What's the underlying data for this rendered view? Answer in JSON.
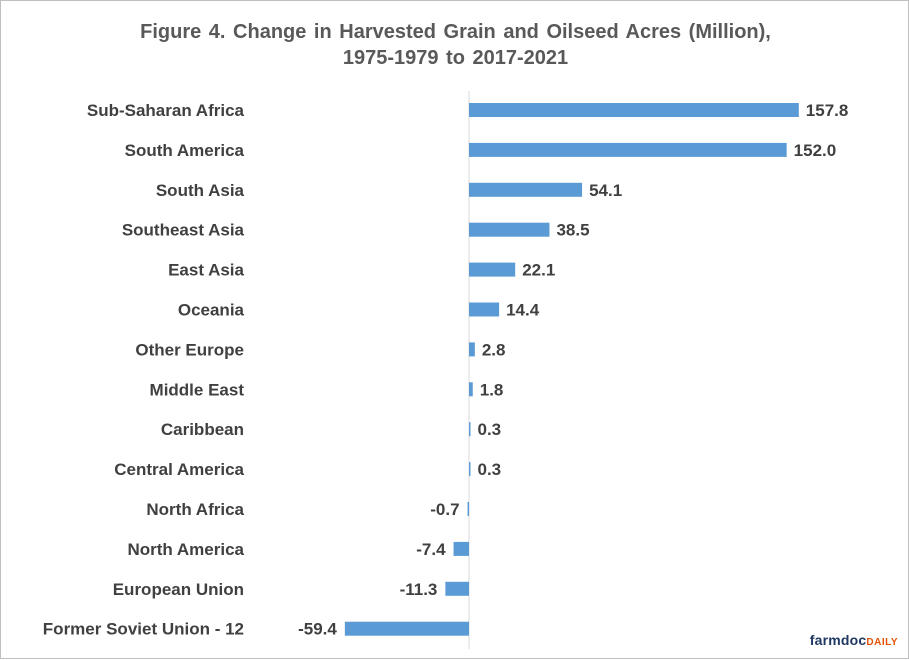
{
  "chart_data": {
    "type": "bar",
    "orientation": "horizontal",
    "title": "Figure  4. Change in Harvested Grain and Oilseed Acres (Million),",
    "subtitle": "1975-1979  to 2017-2021",
    "xlabel": "",
    "ylabel": "",
    "grid": false,
    "legend": "none",
    "bar_color": "#5b9bd5",
    "xlim": [
      -70,
      175
    ],
    "categories": [
      "Sub-Saharan Africa",
      "South America",
      "South Asia",
      "Southeast Asia",
      "East Asia",
      "Oceania",
      "Other Europe",
      "Middle East",
      "Caribbean",
      "Central America",
      "North Africa",
      "North America",
      "European Union",
      "Former Soviet Union - 12"
    ],
    "values": [
      157.8,
      152.0,
      54.1,
      38.5,
      22.1,
      14.4,
      2.8,
      1.8,
      0.3,
      0.3,
      -0.7,
      -7.4,
      -11.3,
      -59.4
    ],
    "data_labels": [
      "157.8",
      "152.0",
      "54.1",
      "38.5",
      "22.1",
      "14.4",
      "2.8",
      "1.8",
      "0.3",
      "0.3",
      "-0.7",
      "-7.4",
      "-11.3",
      "-59.4"
    ]
  },
  "brand": {
    "part1": "farmdoc",
    "part2": "DAILY"
  }
}
